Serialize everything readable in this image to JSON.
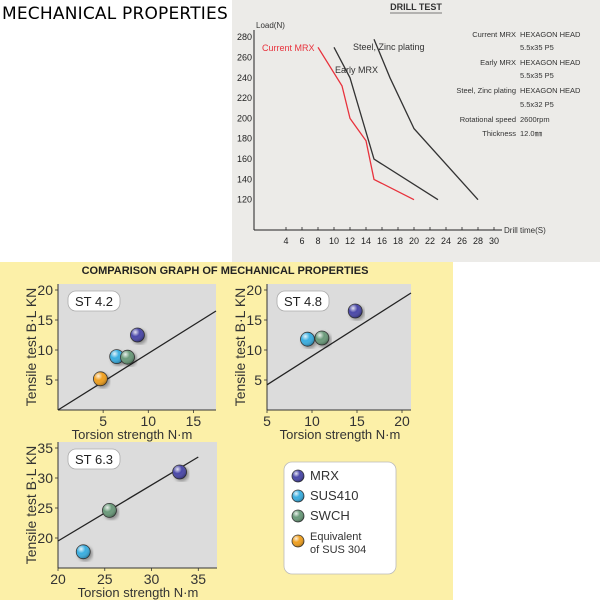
{
  "page_title": "MECHANICAL PROPERTIES",
  "chart_data": [
    {
      "type": "line",
      "title": "DRILL TEST",
      "xlabel": "Drill time(S)",
      "ylabel": "Load(N)",
      "xlim": [
        0,
        30
      ],
      "ylim": [
        100,
        290
      ],
      "xticks": [
        "4",
        "6",
        "8",
        "10",
        "12",
        "14",
        "16",
        "18",
        "20",
        "22",
        "24",
        "26",
        "28",
        "30"
      ],
      "yticks": [
        "280",
        "260",
        "240",
        "220",
        "200",
        "180",
        "160",
        "140",
        "120"
      ],
      "series": [
        {
          "name": "Current MRX",
          "color": "#e8323c",
          "points": [
            [
              8,
              270
            ],
            [
              11,
              232
            ],
            [
              12,
              200
            ],
            [
              14,
              178
            ],
            [
              15,
              140
            ],
            [
              20,
              120
            ]
          ]
        },
        {
          "name": "Early MRX",
          "color": "#333333",
          "points": [
            [
              10,
              270
            ],
            [
              12,
              240
            ],
            [
              15,
              160
            ],
            [
              23,
              120
            ]
          ]
        },
        {
          "name": "Steel, Zinc plating",
          "color": "#333333",
          "points": [
            [
              15,
              278
            ],
            [
              17,
              240
            ],
            [
              20,
              190
            ],
            [
              28,
              120
            ]
          ]
        }
      ],
      "spec_table": [
        {
          "label": "Current MRX",
          "value": "HEXAGON HEAD",
          "sub": "5.5x35 P5"
        },
        {
          "label": "Early MRX",
          "value": "HEXAGON HEAD",
          "sub": "5.5x35 P5"
        },
        {
          "label": "Steel, Zinc plating",
          "value": "HEXAGON HEAD",
          "sub": "5.5x32 P5"
        },
        {
          "label": "Rotational speed",
          "value": "2600rpm",
          "sub": ""
        },
        {
          "label": "Thickness",
          "value": "12.0㎜",
          "sub": ""
        }
      ]
    },
    {
      "type": "scatter",
      "title": "COMPARISON GRAPH OF MECHANICAL PROPERTIES",
      "ylabel": "Tensile test B·L KN",
      "legend": [
        {
          "name": "MRX",
          "color": "#4a48a8"
        },
        {
          "name": "SUS410",
          "color": "#3aaee0"
        },
        {
          "name": "SWCH",
          "color": "#6a9a7a"
        },
        {
          "name": "Equivalent of SUS 304",
          "color": "#f0a020"
        }
      ],
      "panels": [
        {
          "label": "ST 4.2",
          "xlabel": "Torsion strength   N·m",
          "xlim": [
            0,
            17.5
          ],
          "ylim": [
            0,
            21
          ],
          "xticks": [
            5,
            10,
            15
          ],
          "yticks": [
            5,
            10,
            15,
            20
          ],
          "line": [
            [
              0,
              0
            ],
            [
              17.5,
              16.5
            ]
          ],
          "points": [
            {
              "series": "MRX",
              "x": 8.8,
              "y": 12.5
            },
            {
              "series": "SUS410",
              "x": 6.5,
              "y": 8.9
            },
            {
              "series": "SWCH",
              "x": 7.7,
              "y": 8.8
            },
            {
              "series": "Equivalent of SUS 304",
              "x": 4.7,
              "y": 5.2
            }
          ]
        },
        {
          "label": "ST 4.8",
          "xlabel": "Torsion strength   N·m",
          "xlim": [
            5,
            21
          ],
          "ylim": [
            0,
            21
          ],
          "xticks": [
            5,
            10,
            15,
            20
          ],
          "yticks": [
            5,
            10,
            15,
            20
          ],
          "line": [
            [
              5,
              4.2
            ],
            [
              21,
              19.5
            ]
          ],
          "points": [
            {
              "series": "MRX",
              "x": 14.8,
              "y": 16.5
            },
            {
              "series": "SUS410",
              "x": 9.5,
              "y": 11.8
            },
            {
              "series": "SWCH",
              "x": 11.1,
              "y": 12.0
            }
          ]
        },
        {
          "label": "ST 6.3",
          "xlabel": "Torsion strength   N·m",
          "xlim": [
            20,
            37
          ],
          "ylim": [
            15,
            36
          ],
          "xticks": [
            20,
            25,
            30,
            35
          ],
          "yticks": [
            20,
            25,
            30,
            35
          ],
          "line": [
            [
              20,
              19.5
            ],
            [
              35,
              33.5
            ]
          ],
          "points": [
            {
              "series": "MRX",
              "x": 33,
              "y": 31
            },
            {
              "series": "SUS410",
              "x": 22.7,
              "y": 17.7
            },
            {
              "series": "SWCH",
              "x": 25.5,
              "y": 24.6
            }
          ]
        }
      ]
    }
  ]
}
